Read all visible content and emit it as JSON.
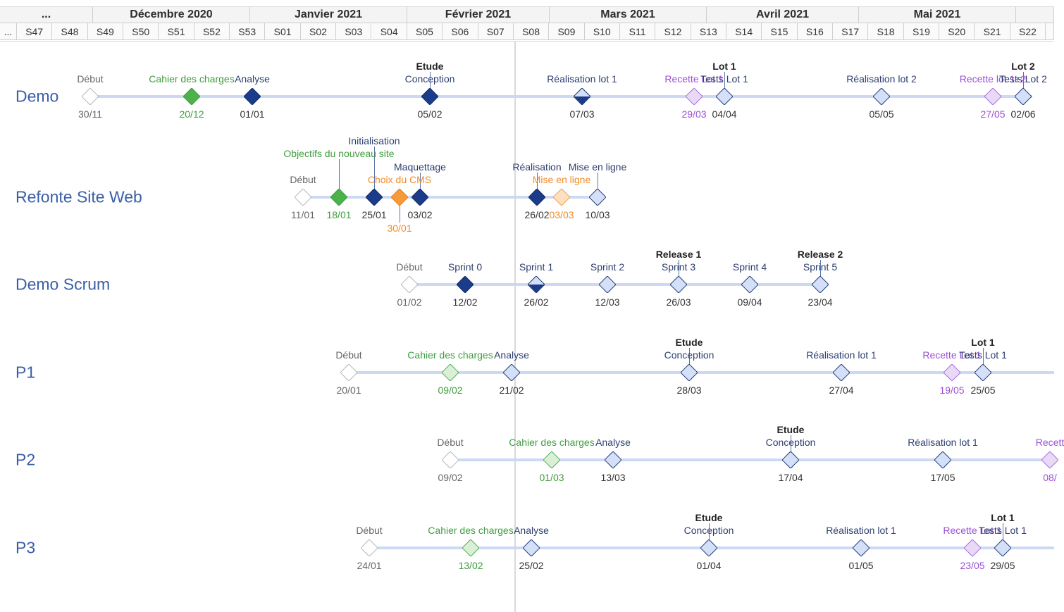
{
  "colors": {
    "navy": "#1a3c8a",
    "light_blue": "#d4e0f8",
    "green": "#4cb34c",
    "green_light": "#d9f0d7",
    "orange": "#f79a3a",
    "orange_light": "#fde0c2",
    "purple_light": "#e8d9f7",
    "text_green": "#3f9d3f",
    "text_orange": "#f08c2a",
    "text_purple": "#9b4fd6",
    "text_navy": "#2c3e70"
  },
  "header": {
    "months": [
      "...",
      "Décembre 2020",
      "Janvier 2021",
      "Février 2021",
      "Mars 2021",
      "Avril 2021",
      "Mai 2021",
      ""
    ],
    "weeks": [
      "...",
      "S47",
      "S48",
      "S49",
      "S50",
      "S51",
      "S52",
      "S53",
      "S01",
      "S02",
      "S03",
      "S04",
      "S05",
      "S06",
      "S07",
      "S08",
      "S09",
      "S10",
      "S11",
      "S12",
      "S13",
      "S14",
      "S15",
      "S16",
      "S17",
      "S18",
      "S19",
      "S20",
      "S21",
      "S22",
      ""
    ]
  },
  "projects": [
    {
      "name": "Demo",
      "milestones": [
        {
          "labels": [
            "Début"
          ],
          "date": "30/11",
          "style": "outline",
          "text": "grey"
        },
        {
          "labels": [
            "Cahier des charges"
          ],
          "date": "20/12",
          "style": "green",
          "text": "green"
        },
        {
          "labels": [
            "Analyse"
          ],
          "date": "01/01",
          "style": "navy",
          "text": "navy"
        },
        {
          "labels": [
            "Etude",
            "Conception"
          ],
          "date": "05/02",
          "style": "navy",
          "text": "navy",
          "bold": [
            0
          ]
        },
        {
          "labels": [
            "Réalisation lot 1"
          ],
          "date": "07/03",
          "style": "half",
          "text": "navy"
        },
        {
          "labels": [
            "Recette Lot 1"
          ],
          "date": "29/03",
          "style": "purple",
          "text": "purple"
        },
        {
          "labels": [
            "Lot 1",
            "Tests Lot 1"
          ],
          "date": "04/04",
          "style": "light",
          "text": "navy",
          "bold": [
            0
          ]
        },
        {
          "labels": [
            "Réalisation lot 2"
          ],
          "date": "05/05",
          "style": "light",
          "text": "navy"
        },
        {
          "labels": [
            "Recette lot 1+2"
          ],
          "date": "27/05",
          "style": "purple",
          "text": "purple"
        },
        {
          "labels": [
            "Lot 2",
            "Tests Lot 2"
          ],
          "date": "02/06",
          "style": "light",
          "text": "navy",
          "bold": [
            0
          ]
        }
      ]
    },
    {
      "name": "Refonte Site Web",
      "milestones": [
        {
          "labels": [
            "Début"
          ],
          "date": "11/01",
          "style": "outline",
          "text": "grey"
        },
        {
          "labels": [
            "Objectifs du nouveau site"
          ],
          "date": "18/01",
          "style": "green",
          "text": "green"
        },
        {
          "labels": [
            "Initialisation"
          ],
          "date": "25/01",
          "style": "navy",
          "text": "navy"
        },
        {
          "labels": [
            "Choix du CMS"
          ],
          "date": "30/01",
          "style": "orange",
          "text": "orange"
        },
        {
          "labels": [
            "Maquettage"
          ],
          "date": "03/02",
          "style": "navy",
          "text": "navy"
        },
        {
          "labels": [
            "Réalisation"
          ],
          "date": "26/02",
          "style": "navy",
          "text": "navy"
        },
        {
          "labels": [
            "Mise en ligne"
          ],
          "date": "03/03",
          "style": "orange_light",
          "text": "orange"
        },
        {
          "labels": [
            "Mise en ligne"
          ],
          "date": "10/03",
          "style": "light",
          "text": "navy"
        }
      ]
    },
    {
      "name": "Demo Scrum",
      "milestones": [
        {
          "labels": [
            "Début"
          ],
          "date": "01/02",
          "style": "outline",
          "text": "grey"
        },
        {
          "labels": [
            "Sprint 0"
          ],
          "date": "12/02",
          "style": "navy",
          "text": "navy"
        },
        {
          "labels": [
            "Sprint 1"
          ],
          "date": "26/02",
          "style": "half",
          "text": "navy"
        },
        {
          "labels": [
            "Sprint 2"
          ],
          "date": "12/03",
          "style": "light",
          "text": "navy"
        },
        {
          "labels": [
            "Release 1",
            "Sprint 3"
          ],
          "date": "26/03",
          "style": "light",
          "text": "navy",
          "bold": [
            0
          ]
        },
        {
          "labels": [
            "Sprint 4"
          ],
          "date": "09/04",
          "style": "light",
          "text": "navy"
        },
        {
          "labels": [
            "Release 2",
            "Sprint 5"
          ],
          "date": "23/04",
          "style": "light",
          "text": "navy",
          "bold": [
            0
          ]
        }
      ]
    },
    {
      "name": "P1",
      "milestones": [
        {
          "labels": [
            "Début"
          ],
          "date": "20/01",
          "style": "outline",
          "text": "grey"
        },
        {
          "labels": [
            "Cahier des charges"
          ],
          "date": "09/02",
          "style": "green_light",
          "text": "green"
        },
        {
          "labels": [
            "Analyse"
          ],
          "date": "21/02",
          "style": "light",
          "text": "navy"
        },
        {
          "labels": [
            "Etude",
            "Conception"
          ],
          "date": "28/03",
          "style": "light",
          "text": "navy",
          "bold": [
            0
          ]
        },
        {
          "labels": [
            "Réalisation lot 1"
          ],
          "date": "27/04",
          "style": "light",
          "text": "navy"
        },
        {
          "labels": [
            "Recette Lot 1"
          ],
          "date": "19/05",
          "style": "purple",
          "text": "purple"
        },
        {
          "labels": [
            "Lot 1",
            "Tests Lot 1"
          ],
          "date": "25/05",
          "style": "light",
          "text": "navy",
          "bold": [
            0
          ]
        }
      ]
    },
    {
      "name": "P2",
      "milestones": [
        {
          "labels": [
            "Début"
          ],
          "date": "09/02",
          "style": "outline",
          "text": "grey"
        },
        {
          "labels": [
            "Cahier des charges"
          ],
          "date": "01/03",
          "style": "green_light",
          "text": "green"
        },
        {
          "labels": [
            "Analyse"
          ],
          "date": "13/03",
          "style": "light",
          "text": "navy"
        },
        {
          "labels": [
            "Etude",
            "Conception"
          ],
          "date": "17/04",
          "style": "light",
          "text": "navy",
          "bold": [
            0
          ]
        },
        {
          "labels": [
            "Réalisation lot 1"
          ],
          "date": "17/05",
          "style": "light",
          "text": "navy"
        },
        {
          "labels": [
            "Recett"
          ],
          "date": "08/",
          "style": "purple",
          "text": "purple"
        }
      ]
    },
    {
      "name": "P3",
      "milestones": [
        {
          "labels": [
            "Début"
          ],
          "date": "24/01",
          "style": "outline",
          "text": "grey"
        },
        {
          "labels": [
            "Cahier des charges"
          ],
          "date": "13/02",
          "style": "green_light",
          "text": "green"
        },
        {
          "labels": [
            "Analyse"
          ],
          "date": "25/02",
          "style": "light",
          "text": "navy"
        },
        {
          "labels": [
            "Etude",
            "Conception"
          ],
          "date": "01/04",
          "style": "light",
          "text": "navy",
          "bold": [
            0
          ]
        },
        {
          "labels": [
            "Réalisation lot 1"
          ],
          "date": "01/05",
          "style": "light",
          "text": "navy"
        },
        {
          "labels": [
            "Recette Lot 1"
          ],
          "date": "23/05",
          "style": "purple",
          "text": "purple"
        },
        {
          "labels": [
            "Lot 1",
            "Tests Lot 1"
          ],
          "date": "29/05",
          "style": "light",
          "text": "navy",
          "bold": [
            0
          ]
        }
      ]
    }
  ]
}
